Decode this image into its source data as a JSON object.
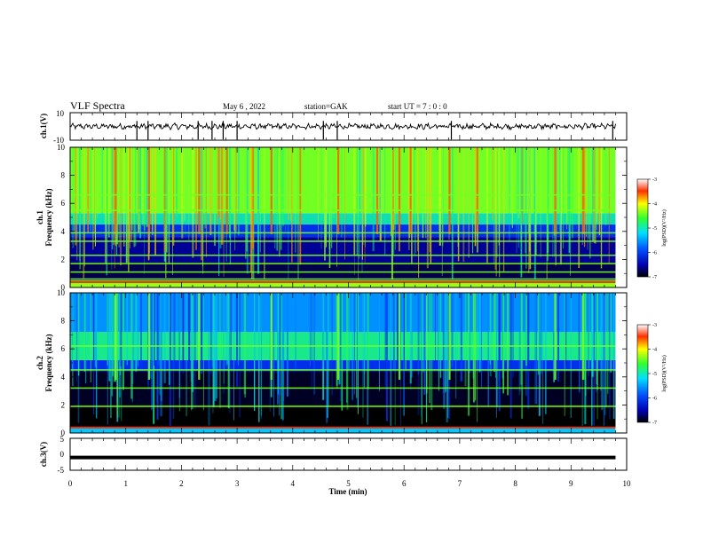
{
  "header": {
    "title": "VLF Spectra",
    "date": "May 6 , 2022",
    "station": "station=GAK",
    "start_ut": "start UT = 7 : 0 : 0"
  },
  "chart_data": [
    {
      "type": "line",
      "name": "ch1-waveform",
      "ylabel": "ch.1(V)",
      "ylim": [
        -10,
        10
      ],
      "ytick_labels": [
        "10",
        "-10"
      ],
      "baseline_v": 0,
      "xlim": [
        0,
        10
      ],
      "data_end_min": 9.8,
      "spike_times_min": [
        1.2,
        1.4,
        2.3,
        2.55,
        2.75,
        3.0,
        4.55,
        4.8,
        6.85,
        9.75
      ]
    },
    {
      "type": "heatmap",
      "name": "ch1-spectrogram",
      "ylabel": "ch.1\nFrequency (kHz)",
      "ylim": [
        0,
        10
      ],
      "ytick_labels": [
        "0",
        "2",
        "4",
        "6",
        "8",
        "10"
      ],
      "xlim": [
        0,
        10
      ],
      "data_end_min": 9.8,
      "colorbar": {
        "label": "log(PSD)(V²/Hz)",
        "range": [
          -7,
          -3
        ],
        "tick_labels": [
          "-3",
          "-4",
          "-5",
          "-6",
          "-7"
        ]
      },
      "bands": [
        {
          "f_range": [
            0,
            0.5
          ],
          "level": -4.8
        },
        {
          "f_range": [
            0.5,
            1.8
          ],
          "level": -6.8
        },
        {
          "f_range": [
            1.8,
            3.6
          ],
          "level": -6.6
        },
        {
          "f_range": [
            3.6,
            4.5
          ],
          "level": -6.2
        },
        {
          "f_range": [
            4.5,
            5.3
          ],
          "level": -5.4
        },
        {
          "f_range": [
            5.3,
            10
          ],
          "level": -4.9
        }
      ],
      "tones_khz": [
        0.3,
        0.6,
        1.1,
        1.7,
        2.3,
        3.3,
        3.9,
        5.5,
        6.6
      ],
      "bursts_min": [
        0.8,
        1.4,
        2.3,
        2.8,
        3.6,
        4.8,
        5.5,
        5.9,
        6.1,
        6.8,
        7.3,
        8.7,
        9.2
      ]
    },
    {
      "type": "heatmap",
      "name": "ch2-spectrogram",
      "ylabel": "ch.2\nFrequency (kHz)",
      "ylim": [
        0,
        10
      ],
      "ytick_labels": [
        "0",
        "2",
        "4",
        "6",
        "8",
        "10"
      ],
      "xlim": [
        0,
        10
      ],
      "data_end_min": 9.8,
      "colorbar": {
        "label": "log(PSD)(V²/Hz)",
        "range": [
          -7,
          -3
        ],
        "tick_labels": [
          "-3",
          "-4",
          "-5",
          "-6",
          "-7"
        ]
      },
      "bands": [
        {
          "f_range": [
            0,
            0.4
          ],
          "level": -5.6
        },
        {
          "f_range": [
            0.4,
            2.0
          ],
          "level": -7.0
        },
        {
          "f_range": [
            2.0,
            4.4
          ],
          "level": -6.9
        },
        {
          "f_range": [
            4.4,
            5.2
          ],
          "level": -6.2
        },
        {
          "f_range": [
            5.2,
            7.2
          ],
          "level": -5.3
        },
        {
          "f_range": [
            7.2,
            10
          ],
          "level": -5.8
        }
      ],
      "tones_khz": [
        0.4,
        1.9,
        3.2,
        4.5,
        6.2
      ],
      "bursts_min": [
        0.8,
        1.4,
        2.3,
        3.6,
        4.8,
        5.9,
        6.8,
        8.7,
        9.2
      ]
    },
    {
      "type": "line",
      "name": "ch3-waveform",
      "ylabel": "ch.3(V)",
      "ylim": [
        -5,
        5
      ],
      "ytick_labels": [
        "5",
        "0",
        "-5"
      ],
      "level_v": -1.0,
      "xlim": [
        0,
        10
      ],
      "data_end_min": 9.8
    }
  ],
  "x_axis": {
    "label": "Time (min)",
    "tick_labels": [
      "0",
      "1",
      "2",
      "3",
      "4",
      "5",
      "6",
      "7",
      "8",
      "9",
      "10"
    ]
  }
}
